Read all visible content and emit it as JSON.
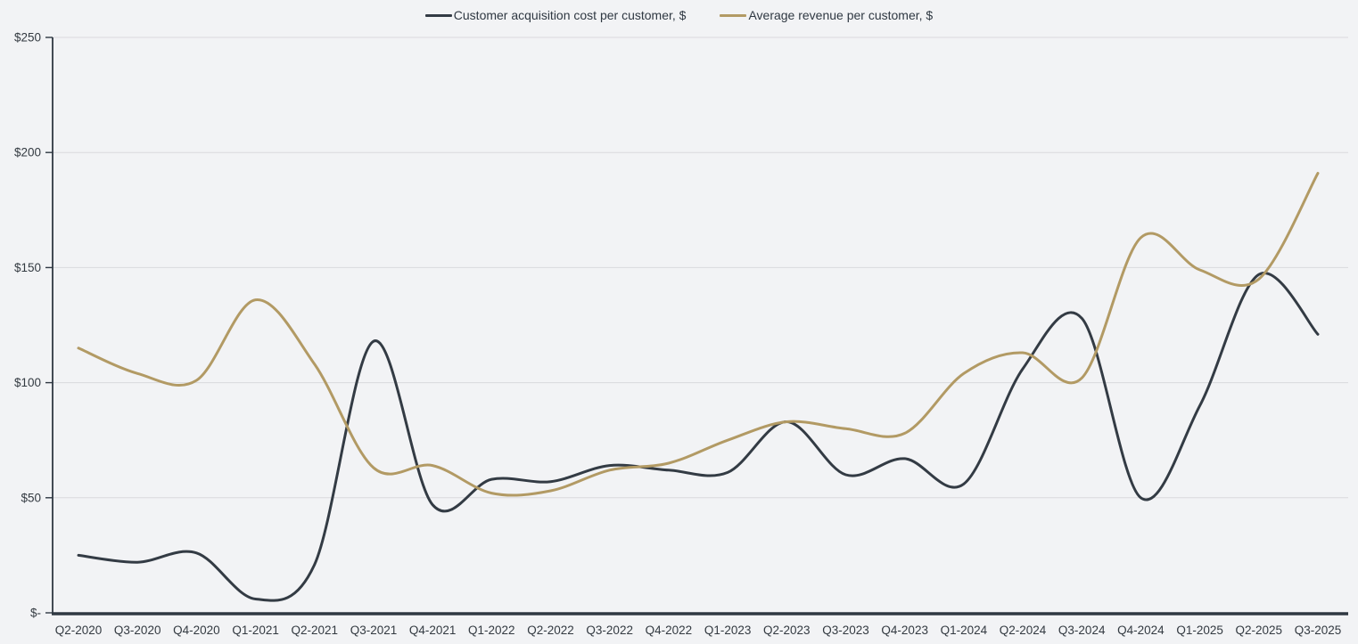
{
  "legend": {
    "items": [
      {
        "label": "Customer acquisition cost per customer, $"
      },
      {
        "label": "Average revenue per customer, $"
      }
    ]
  },
  "chart_data": {
    "type": "line",
    "title": "",
    "smooth": true,
    "grid": "horizontal",
    "legend_position": "top-center",
    "categories": [
      "Q2-2020",
      "Q3-2020",
      "Q4-2020",
      "Q1-2021",
      "Q2-2021",
      "Q3-2021",
      "Q4-2021",
      "Q1-2022",
      "Q2-2022",
      "Q3-2022",
      "Q4-2022",
      "Q1-2023",
      "Q2-2023",
      "Q3-2023",
      "Q4-2023",
      "Q1-2024",
      "Q2-2024",
      "Q3-2024",
      "Q4-2024",
      "Q1-2025",
      "Q2-2025",
      "Q3-2025"
    ],
    "series": [
      {
        "name": "Customer acquisition cost per customer, $",
        "color": "#333b44",
        "values": [
          25,
          22,
          26,
          6,
          21,
          118,
          47,
          58,
          57,
          64,
          62,
          61,
          83,
          60,
          67,
          56,
          106,
          128,
          50,
          90,
          147,
          121
        ]
      },
      {
        "name": "Average revenue per customer, $",
        "color": "#b29a64",
        "values": [
          115,
          104,
          101,
          136,
          108,
          63,
          64,
          52,
          53,
          62,
          65,
          75,
          83,
          80,
          78,
          104,
          113,
          102,
          163,
          149,
          145,
          191
        ]
      }
    ],
    "xlabel": "",
    "ylabel": "",
    "ylim": [
      0,
      250
    ],
    "yticks": [
      0,
      50,
      100,
      150,
      200,
      250
    ],
    "ytick_labels": [
      "$-",
      "$50",
      "$100",
      "$150",
      "$200",
      "$250"
    ]
  },
  "colors": {
    "background": "#f2f3f5",
    "gridline": "#d9dadd",
    "axis": "#2f3842",
    "tick_label": "#333a41"
  }
}
